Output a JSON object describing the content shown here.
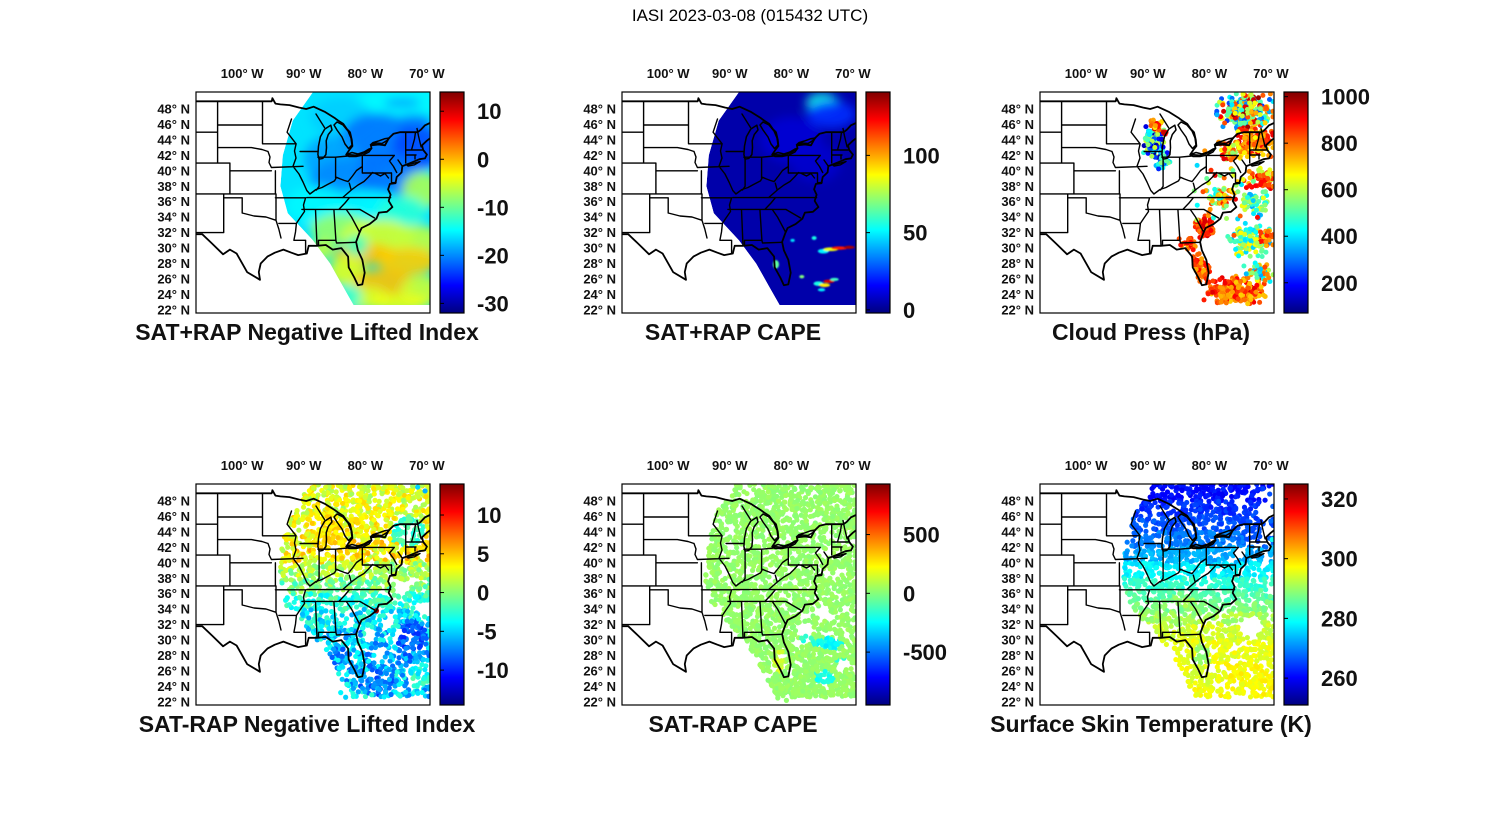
{
  "figure": {
    "title": "IASI 2023-03-08 (015432 UTC)"
  },
  "axes": {
    "lon_ticks": [
      {
        "label": "100° W",
        "lon": 100
      },
      {
        "label": "90° W",
        "lon": 90
      },
      {
        "label": "80° W",
        "lon": 80
      },
      {
        "label": "70° W",
        "lon": 70
      }
    ],
    "lat_ticks": [
      {
        "label": "48° N",
        "lat": 48
      },
      {
        "label": "46° N",
        "lat": 46
      },
      {
        "label": "44° N",
        "lat": 44
      },
      {
        "label": "42° N",
        "lat": 42
      },
      {
        "label": "40° N",
        "lat": 40
      },
      {
        "label": "38° N",
        "lat": 38
      },
      {
        "label": "36° N",
        "lat": 36
      },
      {
        "label": "34° N",
        "lat": 34
      },
      {
        "label": "32° N",
        "lat": 32
      },
      {
        "label": "30° N",
        "lat": 30
      },
      {
        "label": "28° N",
        "lat": 28
      },
      {
        "label": "26° N",
        "lat": 26
      },
      {
        "label": "24° N",
        "lat": 24
      },
      {
        "label": "22° N",
        "lat": 22
      }
    ],
    "domain": {
      "lon_west": 107.5,
      "lon_east": 69.5,
      "lat_north": 50.2,
      "lat_south": 21.6
    }
  },
  "chart_data": {
    "type": "heatmap",
    "description": "Six geographic panels of IASI satellite retrievals over the eastern United States, jet colormap",
    "colormap": "jet",
    "panels": [
      {
        "id": "sat-plus-rap-negative-lifted-index",
        "title": "SAT+RAP Negative Lifted Index",
        "render": "raster",
        "seed": 11,
        "colorbar": {
          "min": -32,
          "max": 14,
          "ticks": [
            10,
            0,
            -10,
            -20,
            -30
          ]
        },
        "base_value": -16,
        "patches": [
          [
            73,
            48.5,
            9,
            2.5,
            -15
          ],
          [
            84,
            47,
            5,
            2.5,
            -17
          ],
          [
            78,
            44,
            6,
            3.5,
            -21
          ],
          [
            71.5,
            43,
            4,
            3,
            -23
          ],
          [
            72,
            46.5,
            3,
            0.8,
            -21
          ],
          [
            74,
            48.8,
            3,
            0.6,
            -19
          ],
          [
            85.5,
            41.5,
            4.5,
            3,
            -19
          ],
          [
            83,
            38.5,
            6,
            3,
            -20
          ],
          [
            76.5,
            39.5,
            5,
            3,
            -21
          ],
          [
            88,
            35.5,
            5,
            2.5,
            -15
          ],
          [
            80,
            35,
            7,
            2.5,
            -15
          ],
          [
            70.8,
            37.5,
            3.2,
            2.4,
            -7
          ],
          [
            74,
            34.8,
            4,
            2,
            -13
          ],
          [
            84,
            32.5,
            5,
            2,
            -8
          ],
          [
            78,
            31.5,
            6,
            2.2,
            -5
          ],
          [
            71.5,
            31,
            4,
            2,
            -6
          ],
          [
            80,
            29.2,
            5,
            1.4,
            -0.5
          ],
          [
            73,
            28.3,
            5,
            1.8,
            -1
          ],
          [
            83,
            27,
            3,
            2,
            -4.5
          ],
          [
            77,
            25.5,
            5,
            1.8,
            -0.5
          ],
          [
            70.8,
            24.5,
            3.5,
            2,
            -5.5
          ],
          [
            80,
            23.5,
            4,
            1.5,
            -5
          ],
          [
            82.3,
            23.8,
            1.6,
            1.4,
            -13
          ],
          [
            81.4,
            30.4,
            1.8,
            1.4,
            -12
          ],
          [
            87,
            29.8,
            2,
            1.4,
            -6
          ],
          [
            74.5,
            22.9,
            5,
            1.2,
            -4
          ]
        ],
        "streaks": []
      },
      {
        "id": "sat-plus-rap-cape",
        "title": "SAT+RAP CAPE",
        "render": "raster",
        "seed": 22,
        "colorbar": {
          "min": -2,
          "max": 141,
          "ticks": [
            100,
            50,
            0
          ]
        },
        "base_value": 4,
        "patches": [
          [
            75,
            48.8,
            2.6,
            1.3,
            55
          ],
          [
            73.5,
            47.3,
            4,
            1.8,
            22
          ],
          [
            80,
            44,
            5,
            3,
            10
          ],
          [
            76,
            41,
            4,
            2.5,
            9
          ]
        ],
        "streaks": [
          [
            74.8,
            29.6,
            0.9,
            0.3,
            50
          ],
          [
            73.6,
            29.85,
            1.2,
            0.25,
            85
          ],
          [
            72.2,
            30.0,
            1.3,
            0.22,
            120
          ],
          [
            70.6,
            30.1,
            0.9,
            0.2,
            135
          ],
          [
            75.6,
            25.4,
            0.8,
            0.3,
            55
          ],
          [
            74.6,
            25.2,
            0.9,
            0.25,
            90
          ],
          [
            73.9,
            25.7,
            0.9,
            0.22,
            128
          ],
          [
            73.0,
            25.95,
            0.7,
            0.2,
            60
          ],
          [
            75.1,
            24.6,
            0.6,
            0.2,
            50
          ],
          [
            82.5,
            27.9,
            0.5,
            0.55,
            65
          ],
          [
            76.3,
            31.3,
            0.4,
            0.25,
            55
          ],
          [
            79.8,
            31.0,
            0.35,
            0.2,
            48
          ],
          [
            78.3,
            26.3,
            0.4,
            0.22,
            70
          ]
        ]
      },
      {
        "id": "cloud-press",
        "title": "Cloud Press (hPa)",
        "render": "scatter",
        "seed": 33,
        "colorbar": {
          "min": 70,
          "max": 1020,
          "ticks": [
            1000,
            800,
            600,
            400,
            200
          ]
        },
        "clusters": [
          [
            89,
            44,
            1.8,
            2.6,
            110,
            350,
            280
          ],
          [
            88.6,
            45.9,
            1.3,
            0.8,
            25,
            800,
            120
          ],
          [
            87.2,
            44.9,
            0.4,
            0.3,
            6,
            900,
            60
          ],
          [
            87.5,
            41.2,
            1.6,
            1.3,
            32,
            360,
            200
          ],
          [
            74.3,
            47.6,
            5.3,
            2.6,
            240,
            620,
            380
          ],
          [
            72.5,
            43.8,
            3.4,
            2.2,
            150,
            800,
            140
          ],
          [
            76.8,
            42.6,
            2.2,
            1.6,
            40,
            760,
            200
          ],
          [
            71.2,
            39,
            2.6,
            1.6,
            65,
            770,
            180
          ],
          [
            72.5,
            35.8,
            2.6,
            1.9,
            55,
            500,
            160
          ],
          [
            73.5,
            31,
            4,
            2.3,
            120,
            520,
            180
          ],
          [
            70.6,
            31.5,
            1.6,
            1.6,
            32,
            800,
            110
          ],
          [
            80.8,
            32.8,
            1.9,
            1.6,
            75,
            850,
            95
          ],
          [
            81.4,
            27.5,
            1.6,
            2.1,
            55,
            810,
            105
          ],
          [
            76,
            24.5,
            5.5,
            2.1,
            230,
            820,
            115
          ],
          [
            72,
            26.8,
            2.6,
            1.6,
            60,
            600,
            260
          ],
          [
            85,
            23.5,
            2.1,
            1.1,
            32,
            800,
            150
          ],
          [
            78.5,
            36.5,
            2.1,
            1.4,
            38,
            650,
            260
          ],
          [
            83.5,
            30.5,
            1.6,
            1.1,
            28,
            820,
            105
          ],
          [
            76.5,
            37.5,
            6.5,
            7,
            60,
            650,
            320
          ]
        ]
      },
      {
        "id": "sat-minus-rap-negative-lifted-index",
        "title": "SAT-RAP Negative Lifted Index",
        "render": "dotfield",
        "seed": 44,
        "colorbar": {
          "min": -14.5,
          "max": 14,
          "ticks": [
            10,
            5,
            0,
            -5,
            -10
          ]
        },
        "bands": [
          [
            46,
            50.2,
            2.5,
            2
          ],
          [
            44,
            46,
            3,
            2
          ],
          [
            40,
            44,
            3.5,
            2.5
          ],
          [
            38,
            40,
            1,
            2
          ],
          [
            36,
            38,
            -0.5,
            2
          ],
          [
            34,
            36,
            -2.5,
            2
          ],
          [
            31.5,
            34,
            -4,
            2.5
          ],
          [
            29,
            31.5,
            -5,
            3
          ],
          [
            26,
            29,
            -6,
            3
          ],
          [
            22.3,
            26,
            -5,
            3
          ]
        ],
        "patches": [
          [
            85.5,
            42.5,
            3,
            2.5,
            4,
            1.2
          ],
          [
            87,
            45.2,
            2.6,
            1.6,
            4,
            1.2
          ],
          [
            73,
            44,
            3,
            2,
            -2,
            1.5
          ],
          [
            72.5,
            30.5,
            2.6,
            2,
            -8.5,
            1.5
          ],
          [
            78,
            24.5,
            3,
            1.6,
            -7.5,
            2
          ],
          [
            71,
            25.5,
            2,
            1.6,
            -3,
            2
          ],
          [
            75.5,
            38.5,
            3,
            1.5,
            0.5,
            1.5
          ]
        ],
        "holes": [
          [
            74,
            36.8,
            1.4,
            0.9
          ],
          [
            70.6,
            34,
            1.1,
            0.8
          ],
          [
            77.6,
            28.6,
            0.9,
            0.7
          ],
          [
            79.3,
            30.6,
            0.9,
            0.6
          ],
          [
            76.3,
            32.2,
            1.1,
            0.8
          ]
        ],
        "extra_dots": [
          [
            78.2,
            33.8,
            13
          ],
          [
            83.2,
            22.6,
            -5
          ],
          [
            84,
            23.2,
            -4
          ],
          [
            70.3,
            49.3,
            -6
          ],
          [
            71.5,
            49.8,
            -5
          ]
        ]
      },
      {
        "id": "sat-minus-rap-cape",
        "title": "SAT-RAP CAPE",
        "render": "dotfield",
        "seed": 55,
        "colorbar": {
          "min": -950,
          "max": 930,
          "ticks": [
            500,
            0,
            -500
          ]
        },
        "bands": [
          [
            22.3,
            50.2,
            30,
            28
          ]
        ],
        "patches": [
          [
            74,
            29.5,
            2.3,
            0.8,
            -230,
            60
          ],
          [
            74.6,
            25.3,
            1.6,
            0.8,
            -200,
            60
          ],
          [
            77.4,
            30.1,
            1.1,
            0.6,
            -170,
            50
          ],
          [
            71.5,
            27.2,
            1.2,
            0.6,
            -150,
            50
          ],
          [
            82,
            27.3,
            1,
            1.6,
            120,
            60
          ]
        ],
        "holes": [
          [
            77.9,
            31.6,
            1.6,
            0.8
          ],
          [
            71.4,
            26.9,
            1.3,
            0.7
          ],
          [
            75.6,
            33.6,
            1,
            0.7
          ],
          [
            79.2,
            29.5,
            0.8,
            0.6
          ],
          [
            73.5,
            33,
            0.9,
            0.6
          ]
        ],
        "extra_dots": [
          [
            82.2,
            22.5,
            20
          ],
          [
            80.8,
            22.2,
            25
          ]
        ]
      },
      {
        "id": "surface-skin-temperature",
        "title": "Surface Skin Temperature (K)",
        "render": "dotfield",
        "seed": 66,
        "colorbar": {
          "min": 251,
          "max": 325,
          "ticks": [
            320,
            300,
            280,
            260
          ]
        },
        "bands": [
          [
            48,
            50.2,
            261,
            2
          ],
          [
            46,
            48,
            263.5,
            2
          ],
          [
            44,
            46,
            266,
            2
          ],
          [
            42,
            44,
            269,
            2
          ],
          [
            40,
            42,
            273,
            2
          ],
          [
            38,
            40,
            278,
            2
          ],
          [
            36.5,
            38,
            282,
            2
          ],
          [
            35,
            36.5,
            285,
            2
          ],
          [
            33.5,
            35,
            288,
            2
          ],
          [
            32,
            33.5,
            291,
            2.5
          ],
          [
            30,
            32,
            294,
            2.5
          ],
          [
            27,
            30,
            296,
            2
          ],
          [
            22.3,
            27,
            297,
            2
          ]
        ],
        "patches": [
          [
            72,
            44.5,
            3,
            2.6,
            265,
            2
          ],
          [
            84.5,
            34.5,
            2.6,
            1.6,
            289,
            3
          ],
          [
            81.3,
            27.5,
            1.2,
            2.2,
            290,
            2
          ],
          [
            80.5,
            25.5,
            3,
            1.6,
            295,
            2
          ]
        ],
        "holes": [
          [
            73.2,
            31.8,
            2.0,
            1.3
          ],
          [
            70.4,
            44.1,
            1.2,
            0.9
          ],
          [
            70.6,
            46.6,
            1.6,
            1.2
          ],
          [
            69.9,
            48.6,
            1.1,
            0.9
          ],
          [
            75.2,
            47.9,
            1.1,
            0.7
          ]
        ],
        "extra_dots": [
          [
            70.2,
            48.9,
            266
          ],
          [
            69.7,
            47.3,
            267
          ],
          [
            71.3,
            49.6,
            265
          ],
          [
            70.0,
            45.4,
            268
          ],
          [
            69.8,
            43.0,
            280
          ]
        ]
      }
    ]
  }
}
